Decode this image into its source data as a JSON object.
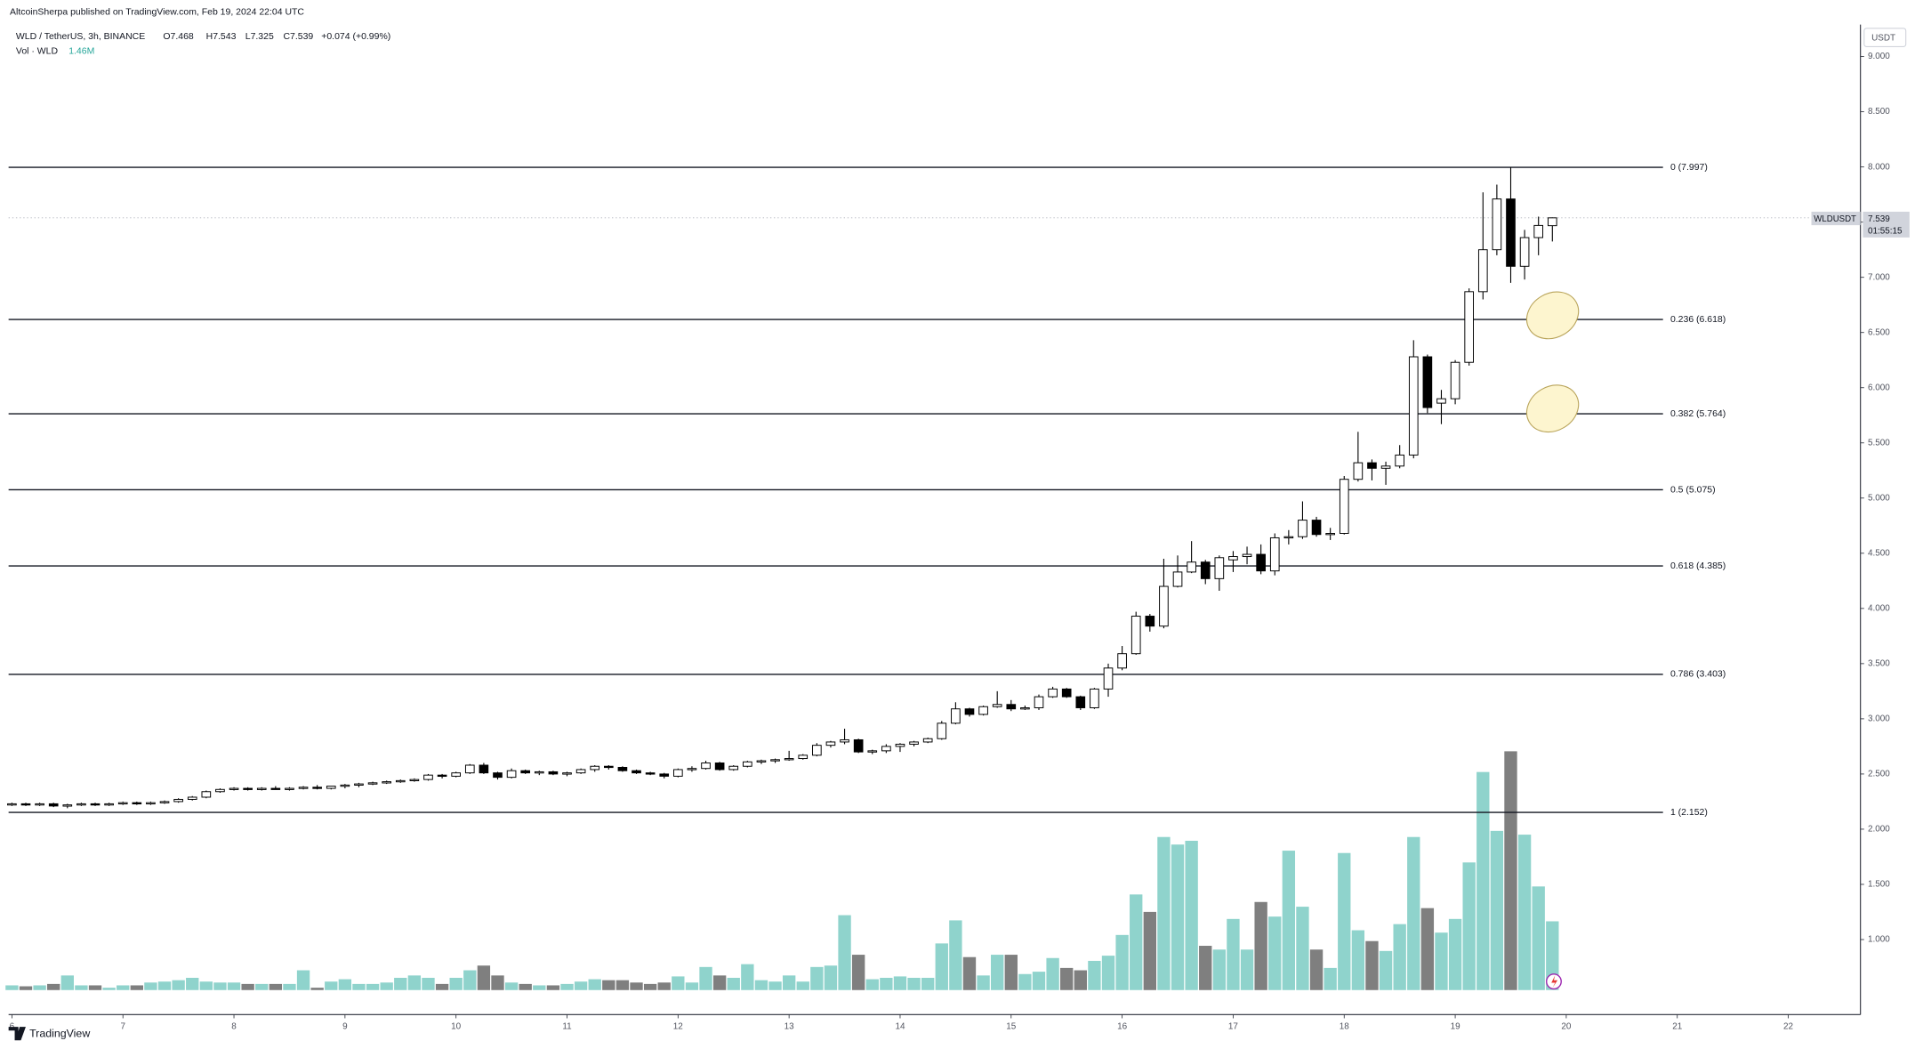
{
  "header": {
    "publisher": "AltcoinSherpa published on TradingView.com, Feb 19, 2024 22:04 UTC"
  },
  "legend": {
    "symbol": "WLD / TetherUS, 3h, BINANCE",
    "open": "O7.468",
    "high": "H7.543",
    "low": "L7.325",
    "close": "C7.539",
    "change": "+0.074 (+0.99%)",
    "volume_name": "Vol · WLD",
    "volume": "1.46M"
  },
  "price_axis": {
    "currency": "USDT"
  },
  "price_tag": {
    "symbol": "WLDUSDT",
    "countdown": "01:55:15"
  },
  "footer": {
    "brand": "TradingView"
  },
  "chart_data": {
    "type": "candlestick",
    "up_color": "#ffffff",
    "down_color": "#000000",
    "wick_color": "#000000",
    "volume_up_color": "#8fd3cc",
    "volume_down_color": "#7f7f7f",
    "fib_color": "#131722",
    "xlim": [
      5.97,
      22.65
    ],
    "xticks": [
      6,
      7,
      8,
      9,
      10,
      11,
      12,
      13,
      14,
      15,
      16,
      17,
      18,
      19,
      20,
      21,
      22
    ],
    "ylim": [
      0.32,
      9.29
    ],
    "yticks": [
      {
        "value": 1,
        "label": "1.000"
      },
      {
        "value": 1.5,
        "label": "1.500"
      },
      {
        "value": 2,
        "label": "2.000"
      },
      {
        "value": 2.5,
        "label": "2.500"
      },
      {
        "value": 3,
        "label": "3.000"
      },
      {
        "value": 3.5,
        "label": "3.500"
      },
      {
        "value": 4,
        "label": "4.000"
      },
      {
        "value": 4.5,
        "label": "4.500"
      },
      {
        "value": 5,
        "label": "5.000"
      },
      {
        "value": 5.5,
        "label": "5.500"
      },
      {
        "value": 6,
        "label": "6.000"
      },
      {
        "value": 6.5,
        "label": "6.500"
      },
      {
        "value": 7,
        "label": "7.000"
      },
      {
        "value": 7.5,
        "label": "7.500"
      },
      {
        "value": 8,
        "label": "8.000"
      },
      {
        "value": 8.5,
        "label": "8.500"
      },
      {
        "value": 9,
        "label": "9.000"
      }
    ],
    "grid": false,
    "volume_lim": [
      0,
      20.5
    ],
    "fib_levels": [
      {
        "label": "0 (7.997)",
        "price": 7.997
      },
      {
        "label": "0.236 (6.618)",
        "price": 6.618
      },
      {
        "label": "0.382 (5.764)",
        "price": 5.764
      },
      {
        "label": "0.5 (5.075)",
        "price": 5.075
      },
      {
        "label": "0.618 (4.385)",
        "price": 4.385
      },
      {
        "label": "0.786 (3.403)",
        "price": 3.403
      },
      {
        "label": "1 (2.152)",
        "price": 2.152
      }
    ],
    "x": [
      6,
      6.125,
      6.25,
      6.375,
      6.5,
      6.625,
      6.75,
      6.875,
      7,
      7.125,
      7.25,
      7.375,
      7.5,
      7.625,
      7.75,
      7.875,
      8,
      8.125,
      8.25,
      8.375,
      8.5,
      8.625,
      8.75,
      8.875,
      9,
      9.125,
      9.25,
      9.375,
      9.5,
      9.625,
      9.75,
      9.875,
      10,
      10.125,
      10.25,
      10.375,
      10.5,
      10.625,
      10.75,
      10.875,
      11,
      11.125,
      11.25,
      11.375,
      11.5,
      11.625,
      11.75,
      11.875,
      12,
      12.125,
      12.25,
      12.375,
      12.5,
      12.625,
      12.75,
      12.875,
      13,
      13.125,
      13.25,
      13.375,
      13.5,
      13.625,
      13.75,
      13.875,
      14,
      14.125,
      14.25,
      14.375,
      14.5,
      14.625,
      14.75,
      14.875,
      15,
      15.125,
      15.25,
      15.375,
      15.5,
      15.625,
      15.75,
      15.875,
      16,
      16.125,
      16.25,
      16.375,
      16.5,
      16.625,
      16.75,
      16.875,
      17,
      17.125,
      17.25,
      17.375,
      17.5,
      17.625,
      17.75,
      17.875,
      18,
      18.125,
      18.25,
      18.375,
      18.5,
      18.625,
      18.75,
      18.875,
      19,
      19.125,
      19.25,
      19.375,
      19.5,
      19.625,
      19.75,
      19.875
    ],
    "open": [
      2.22,
      2.23,
      2.22,
      2.23,
      2.21,
      2.22,
      2.23,
      2.22,
      2.23,
      2.24,
      2.23,
      2.24,
      2.25,
      2.27,
      2.29,
      2.34,
      2.36,
      2.37,
      2.36,
      2.37,
      2.36,
      2.37,
      2.38,
      2.37,
      2.39,
      2.4,
      2.41,
      2.42,
      2.43,
      2.44,
      2.45,
      2.49,
      2.48,
      2.51,
      2.58,
      2.51,
      2.47,
      2.53,
      2.51,
      2.52,
      2.5,
      2.51,
      2.54,
      2.57,
      2.56,
      2.53,
      2.51,
      2.5,
      2.48,
      2.54,
      2.55,
      2.6,
      2.54,
      2.57,
      2.61,
      2.62,
      2.63,
      2.64,
      2.67,
      2.76,
      2.79,
      2.81,
      2.7,
      2.71,
      2.75,
      2.77,
      2.79,
      2.82,
      2.96,
      3.09,
      3.04,
      3.11,
      3.13,
      3.09,
      3.1,
      3.2,
      3.27,
      3.2,
      3.1,
      3.27,
      3.46,
      3.59,
      3.93,
      3.84,
      4.2,
      4.33,
      4.42,
      4.27,
      4.44,
      4.47,
      4.49,
      4.34,
      4.64,
      4.65,
      4.8,
      4.67,
      4.68,
      5.17,
      5.32,
      5.27,
      5.29,
      5.39,
      6.28,
      5.86,
      5.9,
      6.23,
      6.87,
      7.25,
      7.71,
      7.1,
      7.36,
      7.468
    ],
    "high": [
      2.24,
      2.24,
      2.24,
      2.24,
      2.23,
      2.24,
      2.24,
      2.24,
      2.25,
      2.25,
      2.25,
      2.26,
      2.28,
      2.3,
      2.35,
      2.37,
      2.38,
      2.38,
      2.38,
      2.39,
      2.38,
      2.39,
      2.4,
      2.39,
      2.41,
      2.42,
      2.43,
      2.44,
      2.45,
      2.46,
      2.5,
      2.5,
      2.52,
      2.59,
      2.6,
      2.52,
      2.55,
      2.54,
      2.53,
      2.53,
      2.52,
      2.55,
      2.58,
      2.58,
      2.57,
      2.54,
      2.52,
      2.51,
      2.55,
      2.57,
      2.62,
      2.61,
      2.58,
      2.62,
      2.63,
      2.64,
      2.71,
      2.68,
      2.78,
      2.8,
      2.91,
      2.82,
      2.72,
      2.77,
      2.78,
      2.8,
      2.83,
      2.98,
      3.15,
      3.1,
      3.12,
      3.25,
      3.17,
      3.12,
      3.22,
      3.29,
      3.28,
      3.21,
      3.28,
      3.5,
      3.66,
      3.97,
      3.95,
      4.45,
      4.48,
      4.61,
      4.44,
      4.48,
      4.52,
      4.56,
      4.58,
      4.68,
      4.71,
      4.97,
      4.83,
      4.73,
      5.2,
      5.6,
      5.35,
      5.33,
      5.48,
      6.43,
      6.3,
      5.98,
      6.25,
      6.9,
      7.77,
      7.84,
      7.997,
      7.43,
      7.55,
      7.543
    ],
    "low": [
      2.21,
      2.21,
      2.21,
      2.2,
      2.19,
      2.21,
      2.21,
      2.21,
      2.22,
      2.22,
      2.22,
      2.23,
      2.24,
      2.26,
      2.28,
      2.33,
      2.35,
      2.35,
      2.35,
      2.36,
      2.35,
      2.36,
      2.36,
      2.36,
      2.37,
      2.38,
      2.4,
      2.41,
      2.42,
      2.43,
      2.44,
      2.46,
      2.47,
      2.5,
      2.5,
      2.45,
      2.46,
      2.5,
      2.49,
      2.49,
      2.48,
      2.5,
      2.52,
      2.54,
      2.52,
      2.5,
      2.49,
      2.46,
      2.47,
      2.52,
      2.54,
      2.53,
      2.53,
      2.56,
      2.59,
      2.6,
      2.62,
      2.63,
      2.66,
      2.74,
      2.77,
      2.69,
      2.68,
      2.69,
      2.7,
      2.75,
      2.78,
      2.81,
      2.95,
      3.02,
      3.03,
      3.1,
      3.07,
      3.08,
      3.08,
      3.19,
      3.19,
      3.08,
      3.09,
      3.2,
      3.44,
      3.58,
      3.79,
      3.82,
      4.19,
      4.32,
      4.22,
      4.16,
      4.33,
      4.4,
      4.31,
      4.3,
      4.58,
      4.63,
      4.65,
      4.62,
      4.67,
      5.15,
      5.16,
      5.12,
      5.27,
      5.36,
      5.77,
      5.67,
      5.85,
      6.2,
      6.8,
      7.2,
      6.95,
      6.98,
      7.2,
      7.325
    ],
    "close": [
      2.23,
      2.22,
      2.23,
      2.21,
      2.22,
      2.23,
      2.22,
      2.23,
      2.24,
      2.23,
      2.24,
      2.25,
      2.27,
      2.29,
      2.34,
      2.36,
      2.37,
      2.36,
      2.37,
      2.36,
      2.37,
      2.38,
      2.37,
      2.39,
      2.4,
      2.41,
      2.42,
      2.43,
      2.44,
      2.45,
      2.49,
      2.48,
      2.51,
      2.58,
      2.51,
      2.47,
      2.53,
      2.51,
      2.52,
      2.5,
      2.51,
      2.54,
      2.57,
      2.56,
      2.53,
      2.51,
      2.5,
      2.48,
      2.54,
      2.55,
      2.6,
      2.54,
      2.57,
      2.61,
      2.62,
      2.63,
      2.64,
      2.67,
      2.76,
      2.79,
      2.81,
      2.7,
      2.71,
      2.75,
      2.77,
      2.79,
      2.82,
      2.96,
      3.09,
      3.04,
      3.11,
      3.13,
      3.09,
      3.1,
      3.2,
      3.27,
      3.2,
      3.1,
      3.27,
      3.46,
      3.59,
      3.93,
      3.84,
      4.2,
      4.33,
      4.42,
      4.27,
      4.46,
      4.47,
      4.49,
      4.34,
      4.64,
      4.65,
      4.8,
      4.67,
      4.68,
      5.17,
      5.32,
      5.27,
      5.29,
      5.39,
      6.28,
      5.82,
      5.9,
      6.23,
      6.87,
      7.25,
      7.71,
      7.1,
      7.36,
      7.47,
      7.539
    ],
    "volume": [
      0.1,
      0.08,
      0.1,
      0.13,
      0.31,
      0.1,
      0.1,
      0.05,
      0.1,
      0.1,
      0.16,
      0.18,
      0.21,
      0.26,
      0.18,
      0.16,
      0.16,
      0.13,
      0.13,
      0.13,
      0.13,
      0.42,
      0.05,
      0.18,
      0.23,
      0.13,
      0.13,
      0.16,
      0.26,
      0.31,
      0.26,
      0.13,
      0.26,
      0.42,
      0.52,
      0.31,
      0.16,
      0.13,
      0.1,
      0.1,
      0.13,
      0.18,
      0.23,
      0.21,
      0.21,
      0.16,
      0.13,
      0.16,
      0.29,
      0.16,
      0.49,
      0.31,
      0.26,
      0.55,
      0.21,
      0.18,
      0.31,
      0.18,
      0.49,
      0.52,
      1.59,
      0.75,
      0.23,
      0.26,
      0.29,
      0.26,
      0.26,
      0.99,
      1.48,
      0.7,
      0.31,
      0.75,
      0.75,
      0.34,
      0.39,
      0.68,
      0.47,
      0.42,
      0.62,
      0.73,
      1.17,
      2.03,
      1.66,
      3.25,
      3.09,
      3.17,
      0.94,
      0.86,
      1.51,
      0.86,
      1.87,
      1.56,
      2.96,
      1.77,
      0.86,
      0.47,
      2.91,
      1.27,
      1.04,
      0.83,
      1.4,
      3.25,
      1.74,
      1.22,
      1.51,
      2.71,
      4.63,
      3.38,
      5.07,
      3.3,
      2.2,
      1.46
    ]
  }
}
